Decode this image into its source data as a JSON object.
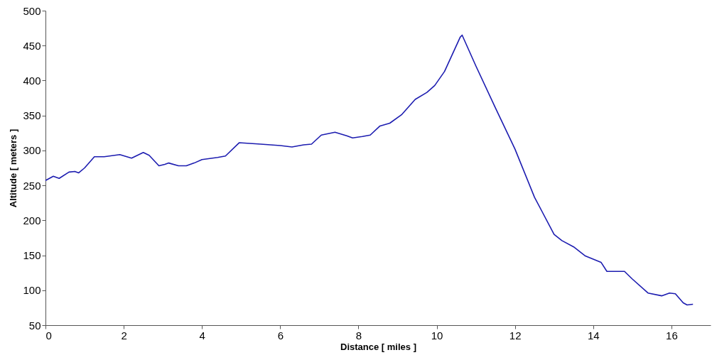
{
  "chart_data": {
    "type": "line",
    "xlabel": "Distance [ miles ]",
    "ylabel": "Altitude [ meters ]",
    "xlim": [
      0,
      17
    ],
    "xticks": [
      0,
      2,
      4,
      6,
      8,
      10,
      12,
      14,
      16
    ],
    "ylim": [
      50,
      500
    ],
    "yticks": [
      50,
      100,
      150,
      200,
      250,
      300,
      350,
      400,
      450,
      500
    ],
    "grid": false,
    "line_style": "solid",
    "x": [
      0,
      0.2,
      0.35,
      0.6,
      0.75,
      0.85,
      1.0,
      1.25,
      1.5,
      1.9,
      2.2,
      2.5,
      2.65,
      2.9,
      3.05,
      3.15,
      3.4,
      3.6,
      3.8,
      4.0,
      4.4,
      4.6,
      4.95,
      5.5,
      6.0,
      6.3,
      6.6,
      6.8,
      7.05,
      7.4,
      7.7,
      7.85,
      8.1,
      8.3,
      8.55,
      8.8,
      9.1,
      9.45,
      9.75,
      9.95,
      10.2,
      10.6,
      10.65,
      11.0,
      11.5,
      12.0,
      12.5,
      13.0,
      13.2,
      13.5,
      13.8,
      14.2,
      14.35,
      14.8,
      15.0,
      15.4,
      15.75,
      15.95,
      16.1,
      16.3,
      16.4,
      16.55
    ],
    "series": [
      {
        "color": "#1c1cb0",
        "values": [
          257,
          263,
          260,
          269,
          270,
          268,
          275,
          291,
          291,
          294,
          289,
          297,
          293,
          278,
          280,
          282,
          278,
          278,
          282,
          287,
          290,
          292,
          311,
          309,
          307,
          305,
          308,
          309,
          322,
          326,
          321,
          318,
          320,
          322,
          335,
          339,
          351,
          373,
          383,
          393,
          413,
          462,
          465,
          421,
          361,
          302,
          233,
          180,
          171,
          162,
          149,
          140,
          127,
          127,
          116,
          96,
          92,
          96,
          95,
          82,
          79,
          80
        ]
      }
    ]
  }
}
